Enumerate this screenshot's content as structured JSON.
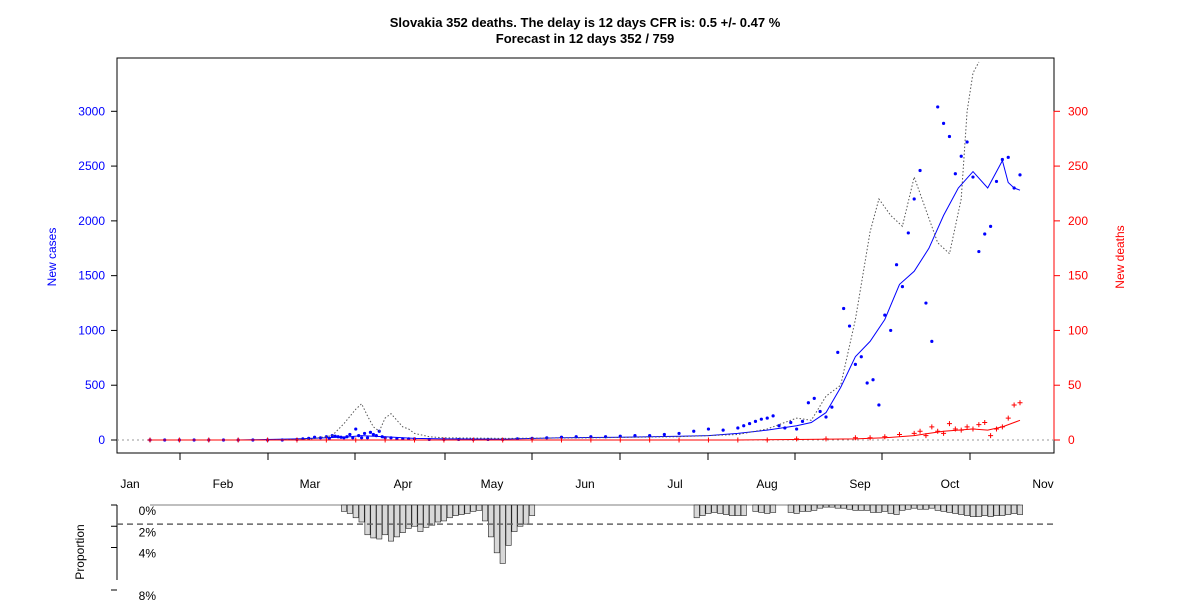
{
  "chart_data": [
    {
      "type": "scatter",
      "title": "Slovakia 352 deaths. The delay is 12 days CFR is: 0.5 +/- 0.47 %",
      "subtitle": "Forecast in 12 days 352 / 759",
      "xlabel": "",
      "ylabel": "New cases",
      "ylabel_right": "New deaths",
      "x_ticks": [
        "Jan",
        "Feb",
        "Mar",
        "Apr",
        "May",
        "Jun",
        "Jul",
        "Aug",
        "Sep",
        "Oct",
        "Nov"
      ],
      "y_ticks_left": [
        "0",
        "500",
        "1000",
        "1500",
        "2000",
        "2500",
        "3000"
      ],
      "y_ticks_right": [
        "0",
        "50",
        "100",
        "150",
        "200",
        "250",
        "300"
      ],
      "ylim_left": [
        0,
        3450
      ],
      "ylim_right": [
        0,
        345
      ],
      "grid": false,
      "colors": {
        "cases": "#0000ff",
        "deaths": "#ff0000",
        "forecast": "#555555"
      },
      "series": [
        {
          "name": "New cases",
          "style": "points",
          "color": "#0000ff",
          "x": [
            0,
            5,
            10,
            15,
            20,
            25,
            30,
            35,
            40,
            45,
            50,
            52,
            54,
            56,
            58,
            60,
            61,
            62,
            63,
            64,
            65,
            66,
            67,
            68,
            69,
            70,
            71,
            72,
            73,
            74,
            75,
            76,
            77,
            78,
            79,
            80,
            82,
            84,
            86,
            88,
            90,
            95,
            100,
            105,
            110,
            115,
            120,
            125,
            130,
            135,
            140,
            145,
            150,
            155,
            160,
            165,
            170,
            175,
            180,
            185,
            190,
            195,
            200,
            202,
            204,
            206,
            208,
            210,
            212,
            214,
            216,
            218,
            220,
            222,
            224,
            226,
            228,
            230,
            232,
            234,
            236,
            238,
            240,
            242,
            244,
            246,
            248,
            250,
            252,
            254,
            256,
            258,
            260,
            262,
            264,
            266,
            268,
            270,
            272,
            274,
            276,
            278,
            280,
            282,
            284,
            286,
            288,
            290,
            292,
            294,
            296
          ],
          "y": [
            0,
            0,
            0,
            0,
            0,
            0,
            0,
            0,
            0,
            0,
            5,
            10,
            15,
            25,
            20,
            30,
            15,
            40,
            35,
            30,
            25,
            20,
            30,
            50,
            20,
            100,
            40,
            20,
            60,
            20,
            70,
            50,
            40,
            80,
            30,
            20,
            20,
            10,
            10,
            10,
            10,
            5,
            5,
            5,
            5,
            5,
            5,
            10,
            15,
            20,
            25,
            30,
            30,
            30,
            35,
            40,
            40,
            50,
            60,
            80,
            100,
            90,
            110,
            130,
            150,
            170,
            190,
            200,
            220,
            130,
            110,
            160,
            100,
            170,
            340,
            380,
            260,
            210,
            300,
            800,
            1200,
            1040,
            690,
            760,
            520,
            550,
            320,
            1140,
            1000,
            1600,
            1400,
            1890,
            2200,
            2460,
            1250,
            900,
            3040,
            2890,
            2770,
            2430,
            2590,
            2720,
            2400,
            1720,
            1880,
            1950,
            2360,
            2560,
            2580,
            2300,
            2420
          ],
          "__y_note": "values beyond visible axis ignored"
        },
        {
          "name": "New cases smoothed",
          "style": "line",
          "color": "#0000ff",
          "x": [
            0,
            30,
            50,
            60,
            64,
            68,
            72,
            76,
            80,
            90,
            100,
            120,
            140,
            160,
            180,
            190,
            200,
            210,
            220,
            225,
            230,
            235,
            240,
            245,
            250,
            255,
            260,
            265,
            270,
            275,
            280,
            285,
            290,
            292,
            294,
            296
          ],
          "y": [
            0,
            0,
            10,
            20,
            25,
            30,
            40,
            35,
            30,
            15,
            10,
            8,
            20,
            25,
            35,
            40,
            60,
            90,
            130,
            160,
            250,
            480,
            760,
            900,
            1100,
            1420,
            1540,
            1750,
            2050,
            2300,
            2450,
            2300,
            2550,
            2350,
            2300,
            2280
          ]
        },
        {
          "name": "New cases projection",
          "style": "dotted",
          "color": "#555555",
          "x": [
            0,
            40,
            55,
            62,
            66,
            70,
            72,
            74,
            76,
            78,
            80,
            82,
            84,
            86,
            88,
            90,
            95,
            100,
            120,
            150,
            180,
            200,
            210,
            220,
            225,
            230,
            235,
            240,
            245,
            248,
            252,
            256,
            260,
            264,
            268,
            272,
            276,
            278,
            280,
            282
          ],
          "y": [
            0,
            0,
            10,
            40,
            150,
            280,
            330,
            220,
            120,
            80,
            200,
            240,
            180,
            120,
            100,
            60,
            30,
            20,
            15,
            20,
            30,
            50,
            100,
            200,
            180,
            400,
            500,
            1100,
            1900,
            2200,
            2050,
            1950,
            2400,
            2100,
            1800,
            1700,
            2200,
            3000,
            3350,
            3450
          ]
        },
        {
          "name": "New deaths",
          "style": "plus",
          "color": "#ff0000",
          "axis": "right",
          "x": [
            0,
            10,
            20,
            30,
            40,
            50,
            60,
            70,
            80,
            90,
            100,
            110,
            120,
            130,
            140,
            150,
            160,
            170,
            180,
            190,
            200,
            210,
            220,
            230,
            240,
            245,
            250,
            255,
            260,
            262,
            264,
            266,
            268,
            270,
            272,
            274,
            276,
            278,
            280,
            282,
            284,
            286,
            288,
            290,
            292,
            294,
            296
          ],
          "y": [
            0,
            0,
            0,
            0,
            0,
            0,
            0,
            0,
            0,
            0,
            0,
            0,
            0,
            0,
            0,
            0,
            0,
            0,
            0,
            0,
            0,
            0,
            1,
            1,
            2,
            2,
            3,
            5,
            6,
            8,
            4,
            12,
            8,
            6,
            15,
            10,
            9,
            12,
            10,
            14,
            16,
            4,
            10,
            12,
            20,
            32,
            34
          ]
        },
        {
          "name": "New deaths smoothed",
          "style": "line",
          "color": "#ff0000",
          "axis": "right",
          "x": [
            0,
            200,
            220,
            240,
            250,
            260,
            265,
            270,
            275,
            280,
            285,
            290,
            294,
            296
          ],
          "y": [
            0,
            0,
            0.5,
            1,
            2,
            4,
            6,
            8,
            9,
            10,
            9,
            12,
            16,
            18
          ]
        }
      ]
    },
    {
      "type": "bar",
      "title": "",
      "ylabel": "Proportion",
      "y_ticks": [
        "0%",
        "2%",
        "4%",
        "8%"
      ],
      "ylim": [
        0,
        8
      ],
      "reference_line": 1.8,
      "x": [
        66,
        68,
        70,
        72,
        74,
        76,
        78,
        80,
        82,
        84,
        86,
        88,
        90,
        92,
        94,
        96,
        98,
        100,
        102,
        104,
        106,
        108,
        110,
        112,
        114,
        116,
        118,
        120,
        122,
        124,
        126,
        128,
        130,
        186,
        188,
        190,
        192,
        194,
        196,
        198,
        200,
        202,
        206,
        208,
        210,
        212,
        218,
        220,
        222,
        224,
        226,
        228,
        230,
        232,
        234,
        236,
        238,
        240,
        242,
        244,
        246,
        248,
        250,
        252,
        254,
        256,
        258,
        260,
        262,
        264,
        266,
        268,
        270,
        272,
        274,
        276,
        278,
        280,
        282,
        284,
        286,
        288,
        290,
        292,
        294,
        296
      ],
      "values": [
        0.6,
        0.8,
        1.2,
        1.6,
        2.8,
        3.1,
        3.2,
        2.8,
        3.4,
        3.0,
        2.6,
        2.2,
        2.0,
        2.5,
        2.1,
        1.9,
        1.6,
        1.5,
        1.2,
        1.0,
        0.9,
        0.8,
        0.6,
        0.5,
        1.5,
        3.0,
        4.5,
        5.5,
        3.8,
        2.5,
        2.0,
        1.8,
        1.0,
        1.2,
        1.0,
        0.8,
        0.7,
        0.8,
        0.9,
        1.0,
        1.0,
        1.0,
        0.6,
        0.7,
        0.8,
        0.7,
        0.7,
        0.8,
        0.6,
        0.6,
        0.5,
        0.3,
        0.2,
        0.2,
        0.3,
        0.3,
        0.4,
        0.5,
        0.5,
        0.5,
        0.7,
        0.7,
        0.6,
        0.8,
        0.9,
        0.5,
        0.4,
        0.3,
        0.4,
        0.4,
        0.3,
        0.5,
        0.6,
        0.7,
        0.8,
        0.9,
        1.0,
        1.1,
        1.1,
        1.0,
        1.1,
        1.0,
        1.0,
        0.9,
        0.8,
        0.9
      ]
    }
  ]
}
